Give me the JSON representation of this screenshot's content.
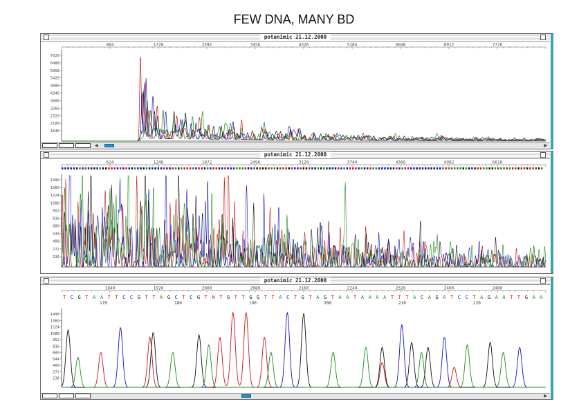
{
  "page_title": "FEW DNA, MANY BD",
  "window_title": "potanimic 21.12.2000",
  "colors": {
    "A": "#1a8a1a",
    "C": "#1010d0",
    "G": "#111111",
    "T": "#d01010",
    "frame": "#6b6b6b",
    "accent": "#3aa3ad"
  },
  "panels": [
    {
      "title": "potanimic 21.12.2000",
      "x_ticks": [
        "864",
        "1728",
        "2592",
        "3456",
        "4320",
        "5184",
        "6048",
        "6912",
        "7776"
      ],
      "y_ticks": [
        "7026",
        "6488",
        "5968",
        "5426",
        "4886",
        "4346",
        "3806",
        "3266",
        "2726",
        "2186",
        "1646"
      ]
    },
    {
      "title": "potanimic 21.12.2000",
      "x_ticks": [
        "624",
        "1248",
        "1872",
        "2496",
        "3120",
        "3744",
        "4368",
        "4992",
        "5616"
      ],
      "y_ticks": [
        "1496",
        "1360",
        "1224",
        "1088",
        "952",
        "816",
        "680",
        "544",
        "408",
        "272",
        "136"
      ]
    },
    {
      "title": "potanimic 21.12.2000",
      "x_ticks": [
        "1840",
        "1920",
        "2000",
        "2080",
        "2160",
        "2240",
        "2320",
        "2400",
        "2480"
      ],
      "y_ticks": [
        "1496",
        "1360",
        "1224",
        "1088",
        "952",
        "816",
        "680",
        "544",
        "408",
        "272",
        "136"
      ],
      "sequence": "TCGTAATTCCGTTAGCTCGTNTGTTGGTTACTGTAGTAATAAAATTTACAGATCCTAGAATTGAA",
      "base_positions": [
        "170",
        "180",
        "190",
        "200",
        "210",
        "220"
      ]
    }
  ],
  "chart_data": [
    {
      "type": "line",
      "title": "potanimic 21.12.2000",
      "xlim": [
        0,
        8600
      ],
      "ylim": [
        0,
        7300
      ],
      "series": [
        {
          "color": "#d01010",
          "peaks": [
            [
              1400,
              7000
            ],
            [
              1470,
              2900
            ],
            [
              1550,
              2300
            ],
            [
              1700,
              1900
            ],
            [
              2050,
              1500
            ],
            [
              2450,
              1800
            ],
            [
              3200,
              1300
            ],
            [
              4200,
              900
            ]
          ]
        },
        {
          "color": "#1010d0",
          "peaks": [
            [
              1500,
              4900
            ],
            [
              1430,
              3300
            ],
            [
              1620,
              2600
            ],
            [
              1850,
              1800
            ],
            [
              2300,
              1300
            ],
            [
              3050,
              1000
            ]
          ]
        },
        {
          "color": "#111111",
          "peaks": [
            [
              1460,
              4000
            ],
            [
              1520,
              3100
            ],
            [
              1650,
              2200
            ],
            [
              2000,
              1700
            ],
            [
              2200,
              1500
            ],
            [
              2700,
              1100
            ]
          ]
        },
        {
          "color": "#1a8a1a",
          "peaks": [
            [
              1580,
              2300
            ],
            [
              1800,
              1900
            ],
            [
              2150,
              1600
            ],
            [
              2500,
              1700
            ],
            [
              2900,
              1200
            ],
            [
              3600,
              1000
            ]
          ]
        }
      ]
    },
    {
      "type": "line",
      "title": "potanimic 21.12.2000",
      "xlim": [
        0,
        5800
      ],
      "ylim": [
        0,
        1550
      ],
      "series": [
        {
          "color": "#d01010",
          "peaks": [
            [
              50,
              1500
            ],
            [
              1950,
              1550
            ],
            [
              2000,
              1500
            ],
            [
              900,
              1200
            ],
            [
              1300,
              1100
            ],
            [
              2500,
              900
            ],
            [
              3200,
              700
            ],
            [
              4100,
              500
            ]
          ]
        },
        {
          "color": "#1010d0",
          "peaks": [
            [
              100,
              1500
            ],
            [
              700,
              1450
            ],
            [
              1250,
              1500
            ],
            [
              1750,
              1500
            ],
            [
              1500,
              1200
            ],
            [
              2600,
              1000
            ],
            [
              3800,
              600
            ],
            [
              5000,
              400
            ]
          ]
        },
        {
          "color": "#111111",
          "peaks": [
            [
              350,
              1500
            ],
            [
              600,
              1400
            ],
            [
              1000,
              1450
            ],
            [
              1400,
              1350
            ],
            [
              2300,
              1000
            ],
            [
              3100,
              700
            ],
            [
              4300,
              500
            ]
          ]
        },
        {
          "color": "#1a8a1a",
          "peaks": [
            [
              250,
              1500
            ],
            [
              800,
              1450
            ],
            [
              1100,
              1400
            ],
            [
              1800,
              1300
            ],
            [
              2700,
              900
            ],
            [
              3400,
              650
            ],
            [
              4500,
              450
            ]
          ]
        }
      ]
    },
    {
      "type": "line",
      "title": "potanimic 21.12.2000",
      "xlim": [
        1800,
        2540
      ],
      "ylim": [
        0,
        1550
      ],
      "series": [
        {
          "color": "#d01010",
          "peaks": [
            [
              1860,
              700
            ],
            [
              1935,
              1000
            ],
            [
              2042,
              1000
            ],
            [
              2062,
              1500
            ],
            [
              2082,
              1500
            ],
            [
              2110,
              1000
            ],
            [
              2290,
              500
            ],
            [
              2400,
              400
            ]
          ]
        },
        {
          "color": "#1010d0",
          "peaks": [
            [
              1890,
              1200
            ],
            [
              2145,
              1500
            ],
            [
              2320,
              1250
            ],
            [
              2385,
              1000
            ],
            [
              2500,
              800
            ]
          ]
        },
        {
          "color": "#111111",
          "peaks": [
            [
              1810,
              1150
            ],
            [
              1940,
              1100
            ],
            [
              2010,
              1050
            ],
            [
              2170,
              1480
            ],
            [
              2290,
              800
            ],
            [
              2335,
              900
            ],
            [
              2360,
              800
            ],
            [
              2455,
              900
            ]
          ]
        },
        {
          "color": "#1a8a1a",
          "peaks": [
            [
              1825,
              600
            ],
            [
              1970,
              700
            ],
            [
              2025,
              850
            ],
            [
              2120,
              700
            ],
            [
              2215,
              700
            ],
            [
              2265,
              800
            ],
            [
              2350,
              700
            ],
            [
              2420,
              850
            ],
            [
              2475,
              700
            ]
          ]
        }
      ]
    }
  ]
}
